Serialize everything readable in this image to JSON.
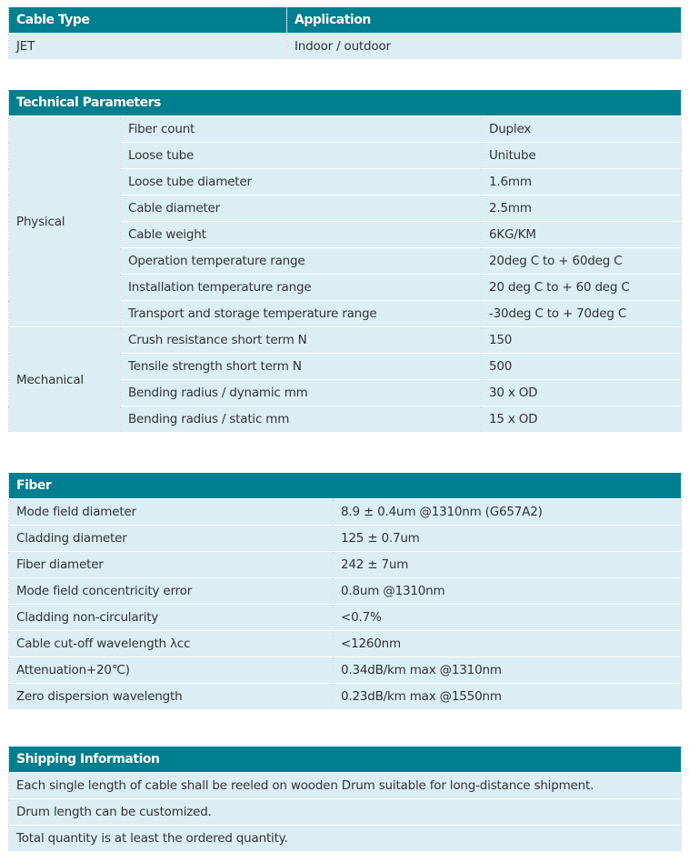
{
  "colors": {
    "header_bg": "#007f91",
    "row_bg": "#daeef3",
    "header_text": "#ffffff",
    "body_text": "#333333"
  },
  "cable_table": {
    "headers": [
      "Cable Type",
      "Application"
    ],
    "row": [
      "JET",
      "Indoor / outdoor"
    ]
  },
  "technical": {
    "title": "Technical Parameters",
    "groups": [
      {
        "name": "Physical",
        "rows": [
          [
            "Fiber count",
            "Duplex"
          ],
          [
            "Loose tube",
            "Unitube"
          ],
          [
            "Loose tube diameter",
            "1.6mm"
          ],
          [
            "Cable diameter",
            "2.5mm"
          ],
          [
            "Cable weight",
            "6KG/KM"
          ],
          [
            "Operation temperature range",
            "20deg C to + 60deg C"
          ],
          [
            "Installation temperature range",
            "20 deg C to + 60 deg C"
          ],
          [
            "Transport and storage temperature range",
            "-30deg C to + 70deg C"
          ]
        ]
      },
      {
        "name": "Mechanical",
        "rows": [
          [
            "Crush resistance short term N",
            "150"
          ],
          [
            "Tensile strength short term N",
            "500"
          ],
          [
            "Bending radius / dynamic mm",
            "30 x OD"
          ],
          [
            "Bending radius / static mm",
            "15 x OD"
          ]
        ]
      }
    ]
  },
  "fiber": {
    "title": "Fiber",
    "rows": [
      [
        "Mode field diameter",
        "8.9 ± 0.4um @1310nm (G657A2)"
      ],
      [
        "Cladding diameter",
        "125 ± 0.7um"
      ],
      [
        "Fiber diameter",
        "242 ± 7um"
      ],
      [
        "Mode field concentricity error",
        "0.8um @1310nm"
      ],
      [
        "Cladding non-circularity",
        " <0.7%"
      ],
      [
        "Cable cut-off wavelength λcc",
        "<1260nm"
      ],
      [
        " Attenuation+20℃)",
        "0.34dB/km max @1310nm"
      ],
      [
        "Zero dispersion wavelength",
        "0.23dB/km max @1550nm"
      ]
    ]
  },
  "shipping": {
    "title": "Shipping Information",
    "rows": [
      "Each single length of cable shall be reeled on wooden Drum suitable for long-distance shipment.",
      "Drum length can be customized.",
      "Total quantity is at least the ordered quantity."
    ]
  }
}
